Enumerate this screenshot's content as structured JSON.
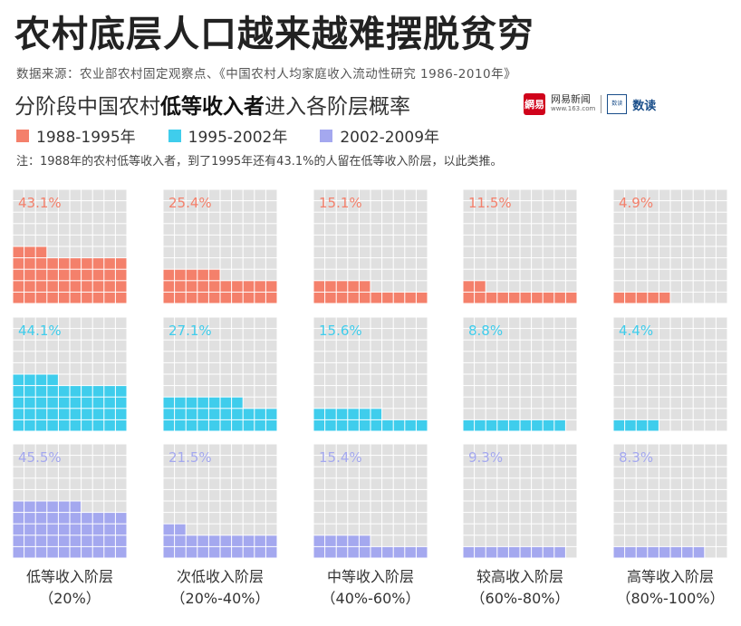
{
  "title": {
    "part1": "农村底层人口",
    "part2": "越来越难摆脱贫穷"
  },
  "source": "数据来源：农业部农村固定观察点、《中国农村人均家庭收入流动性研究 1986-2010年》",
  "subtitle": {
    "pre": "分阶段中国农村",
    "bold": "低等收入者",
    "post": "进入各阶层概率"
  },
  "logos": {
    "netease_mark": "網易",
    "netease_name": "网易新闻",
    "netease_url": "www.163.com",
    "dudu_mark": "数读",
    "dudu_name": "数读"
  },
  "note": "注：1988年的农村低等收入者，到了1995年还有43.1%的人留在低等收入阶层，以此类推。",
  "colors": {
    "period1": "#f4806b",
    "period2": "#3fcdec",
    "period3": "#a4a8ef",
    "empty": "#e0e0e0"
  },
  "chart_data": {
    "type": "waffle",
    "title": "分阶段中国农村低等收入者进入各阶层概率",
    "unit": "%",
    "categories": [
      {
        "name": "低等收入阶层",
        "range": "（20%）"
      },
      {
        "name": "次低收入阶层",
        "range": "（20%-40%）"
      },
      {
        "name": "中等收入阶层",
        "range": "（40%-60%）"
      },
      {
        "name": "较高收入阶层",
        "range": "（60%-80%）"
      },
      {
        "name": "高等收入阶层",
        "range": "（80%-100%）"
      }
    ],
    "series": [
      {
        "name": "1988-1995年",
        "values": [
          43.1,
          25.4,
          15.1,
          11.5,
          4.9
        ],
        "labels": [
          "43.1%",
          "25.4%",
          "15.1%",
          "11.5%",
          "4.9%"
        ]
      },
      {
        "name": "1995-2002年",
        "values": [
          44.1,
          27.1,
          15.6,
          8.8,
          4.4
        ],
        "labels": [
          "44.1%",
          "27.1%",
          "15.6%",
          "8.8%",
          "4.4%"
        ]
      },
      {
        "name": "2002-2009年",
        "values": [
          45.5,
          21.5,
          15.4,
          9.3,
          8.3
        ],
        "labels": [
          "45.5%",
          "21.5%",
          "15.4%",
          "9.3%",
          "8.3%"
        ]
      }
    ]
  }
}
